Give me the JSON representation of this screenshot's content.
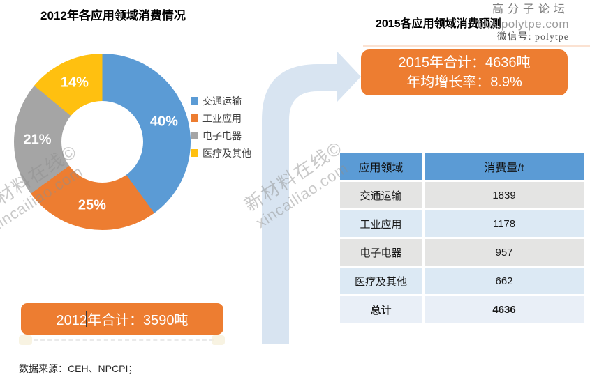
{
  "header": {
    "left_title": "2012年各应用领域消费情况",
    "right_title": "2015各应用领域消费预测"
  },
  "site_watermark": {
    "line1": "高分子论坛",
    "line2": "bbs.polytpe.com",
    "line3": "微信号: polytpe"
  },
  "legend": {
    "items": [
      {
        "label": "交通运输",
        "color": "#5B9BD5"
      },
      {
        "label": "工业应用",
        "color": "#ED7D31"
      },
      {
        "label": "电子电器",
        "color": "#A5A5A5"
      },
      {
        "label": "医疗及其他",
        "color": "#FFC010"
      }
    ]
  },
  "boxes": {
    "total_2015_line1": "2015年合计：4636吨",
    "total_2015_line2": "年均增长率：8.9%",
    "total_2012": "2012年合计：3590吨"
  },
  "table": {
    "headers": [
      "应用领域",
      "消费量/t"
    ],
    "rows": [
      [
        "交通运输",
        "1839"
      ],
      [
        "工业应用",
        "1178"
      ],
      [
        "电子电器",
        "957"
      ],
      [
        "医疗及其他",
        "662"
      ]
    ],
    "total_row": [
      "总计",
      "4636"
    ]
  },
  "diagonal_watermark": {
    "line1": "新材料在线©",
    "line2": "xincailiao.com"
  },
  "footer": {
    "source_text": "数据来源：CEH、NPCPI；"
  },
  "colors": {
    "accent_orange": "#ED7D31",
    "table_header_blue": "#5B9BD5",
    "pie_blue": "#5B9BD5",
    "pie_orange": "#ED7D31",
    "pie_gray": "#A5A5A5",
    "pie_yellow": "#FFC010",
    "arrow_blue": "#D8E4F1",
    "row_gray": "#E4E4E3",
    "row_light_blue": "#DCE9F4",
    "total_row_bg": "#E9EFF7"
  },
  "chart_data": [
    {
      "type": "pie",
      "subtype": "donut",
      "title": "2012年各应用领域消费情况",
      "labels": [
        "交通运输",
        "工业应用",
        "电子电器",
        "医疗及其他"
      ],
      "values": [
        40,
        25,
        21,
        14
      ],
      "unit": "%",
      "colors": [
        "#5B9BD5",
        "#ED7D31",
        "#A5A5A5",
        "#FFC010"
      ],
      "start_angle": "top",
      "direction": "clockwise",
      "hole_ratio": 0.46,
      "legend_position": "right",
      "annotation": "2012年合计：3590吨",
      "total_tonnes_2012": 3590
    },
    {
      "type": "table",
      "title": "2015各应用领域消费预测",
      "columns": [
        "应用领域",
        "消费量/t"
      ],
      "rows": [
        [
          "交通运输",
          1839
        ],
        [
          "工业应用",
          1178
        ],
        [
          "电子电器",
          957
        ],
        [
          "医疗及其他",
          662
        ],
        [
          "总计",
          4636
        ]
      ],
      "annotations": [
        "2015年合计：4636吨",
        "年均增长率：8.9%"
      ],
      "total_tonnes_2015": 4636,
      "annual_growth_rate": "8.9%"
    }
  ]
}
